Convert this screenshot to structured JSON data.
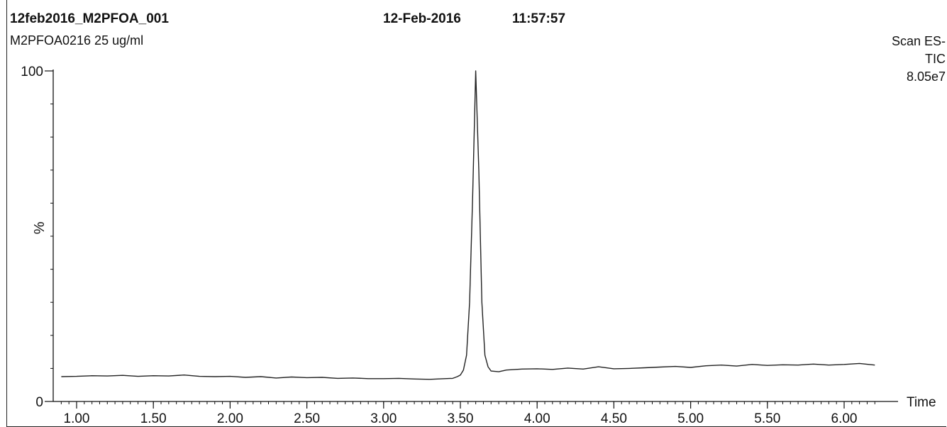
{
  "header": {
    "file_name": "12feb2016_M2PFOA_001",
    "date": "12-Feb-2016",
    "time": "11:57:57",
    "sample": "M2PFOA0216 25 ug/ml",
    "scan": "Scan ES-",
    "trace": "TIC",
    "intensity": "8.05e7"
  },
  "chart_data": {
    "type": "line",
    "title": "",
    "xlabel": "Time",
    "ylabel": "%",
    "xlim": [
      0.9,
      6.2
    ],
    "ylim": [
      0,
      100
    ],
    "x_ticks": [
      1.0,
      1.5,
      2.0,
      2.5,
      3.0,
      3.5,
      4.0,
      4.5,
      5.0,
      5.5,
      6.0
    ],
    "x_tick_labels": [
      "1.00",
      "1.50",
      "2.00",
      "2.50",
      "3.00",
      "3.50",
      "4.00",
      "4.50",
      "5.00",
      "5.50",
      "6.00"
    ],
    "y_tick_labels": [
      "0",
      "100"
    ],
    "grid": false,
    "series": [
      {
        "name": "",
        "x": [
          0.9,
          1.0,
          1.1,
          1.2,
          1.3,
          1.4,
          1.5,
          1.6,
          1.7,
          1.8,
          1.9,
          2.0,
          2.1,
          2.2,
          2.3,
          2.4,
          2.5,
          2.6,
          2.7,
          2.8,
          2.9,
          3.0,
          3.1,
          3.2,
          3.3,
          3.4,
          3.45,
          3.48,
          3.5,
          3.52,
          3.54,
          3.56,
          3.58,
          3.6,
          3.62,
          3.64,
          3.66,
          3.68,
          3.7,
          3.75,
          3.8,
          3.9,
          4.0,
          4.1,
          4.2,
          4.3,
          4.4,
          4.5,
          4.6,
          4.7,
          4.8,
          4.9,
          5.0,
          5.1,
          5.2,
          5.3,
          5.4,
          5.5,
          5.6,
          5.7,
          5.8,
          5.9,
          6.0,
          6.1,
          6.2
        ],
        "y": [
          7.5,
          7.6,
          7.8,
          7.7,
          7.9,
          7.6,
          7.8,
          7.7,
          8.0,
          7.6,
          7.5,
          7.6,
          7.3,
          7.5,
          7.1,
          7.4,
          7.2,
          7.3,
          7.0,
          7.1,
          6.9,
          6.9,
          7.0,
          6.8,
          6.7,
          6.9,
          7.0,
          7.5,
          8.0,
          9.5,
          14.0,
          30.0,
          62.0,
          100.0,
          70.0,
          30.0,
          14.0,
          10.5,
          9.2,
          9.0,
          9.5,
          9.8,
          9.9,
          9.7,
          10.1,
          9.8,
          10.5,
          9.9,
          10.0,
          10.2,
          10.4,
          10.6,
          10.3,
          10.8,
          11.0,
          10.7,
          11.2,
          10.9,
          11.1,
          11.0,
          11.3,
          11.0,
          11.2,
          11.5,
          11.0
        ]
      }
    ]
  }
}
